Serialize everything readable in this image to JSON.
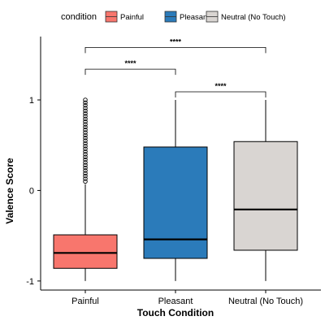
{
  "chart_data": {
    "type": "boxplot",
    "xlabel": "Touch Condition",
    "ylabel": "Valence Score",
    "ylim": [
      -1.1,
      1.7
    ],
    "yticks": [
      -1,
      0,
      1
    ],
    "legend": {
      "title": "condition",
      "placement": "top",
      "entries": [
        "Painful",
        "Pleasant",
        "Neutral (No Touch)"
      ]
    },
    "categories": [
      "Painful",
      "Pleasant",
      "Neutral (No Touch)"
    ],
    "boxes": [
      {
        "category": "Painful",
        "color": "#F8766D",
        "min": -1.0,
        "q1": -0.86,
        "median": -0.69,
        "q3": -0.49,
        "max": 0.07,
        "outliers": [
          0.1,
          0.13,
          0.16,
          0.19,
          0.22,
          0.25,
          0.28,
          0.31,
          0.34,
          0.37,
          0.4,
          0.43,
          0.46,
          0.49,
          0.52,
          0.55,
          0.58,
          0.61,
          0.64,
          0.67,
          0.7,
          0.73,
          0.76,
          0.79,
          0.82,
          0.85,
          0.88,
          0.91,
          0.94,
          0.97,
          1.0
        ]
      },
      {
        "category": "Pleasant",
        "color": "#2B7BBA",
        "min": -1.0,
        "q1": -0.75,
        "median": -0.54,
        "q3": 0.48,
        "max": 1.0,
        "outliers": []
      },
      {
        "category": "Neutral (No Touch)",
        "color": "#D9D5D2",
        "min": -1.0,
        "q1": -0.66,
        "median": -0.21,
        "q3": 0.54,
        "max": 1.0,
        "outliers": []
      }
    ],
    "significance": [
      {
        "from": 0,
        "to": 2,
        "y": 1.58,
        "label": "****"
      },
      {
        "from": 0,
        "to": 1,
        "y": 1.34,
        "label": "****"
      },
      {
        "from": 1,
        "to": 2,
        "y": 1.09,
        "label": "****"
      }
    ]
  }
}
